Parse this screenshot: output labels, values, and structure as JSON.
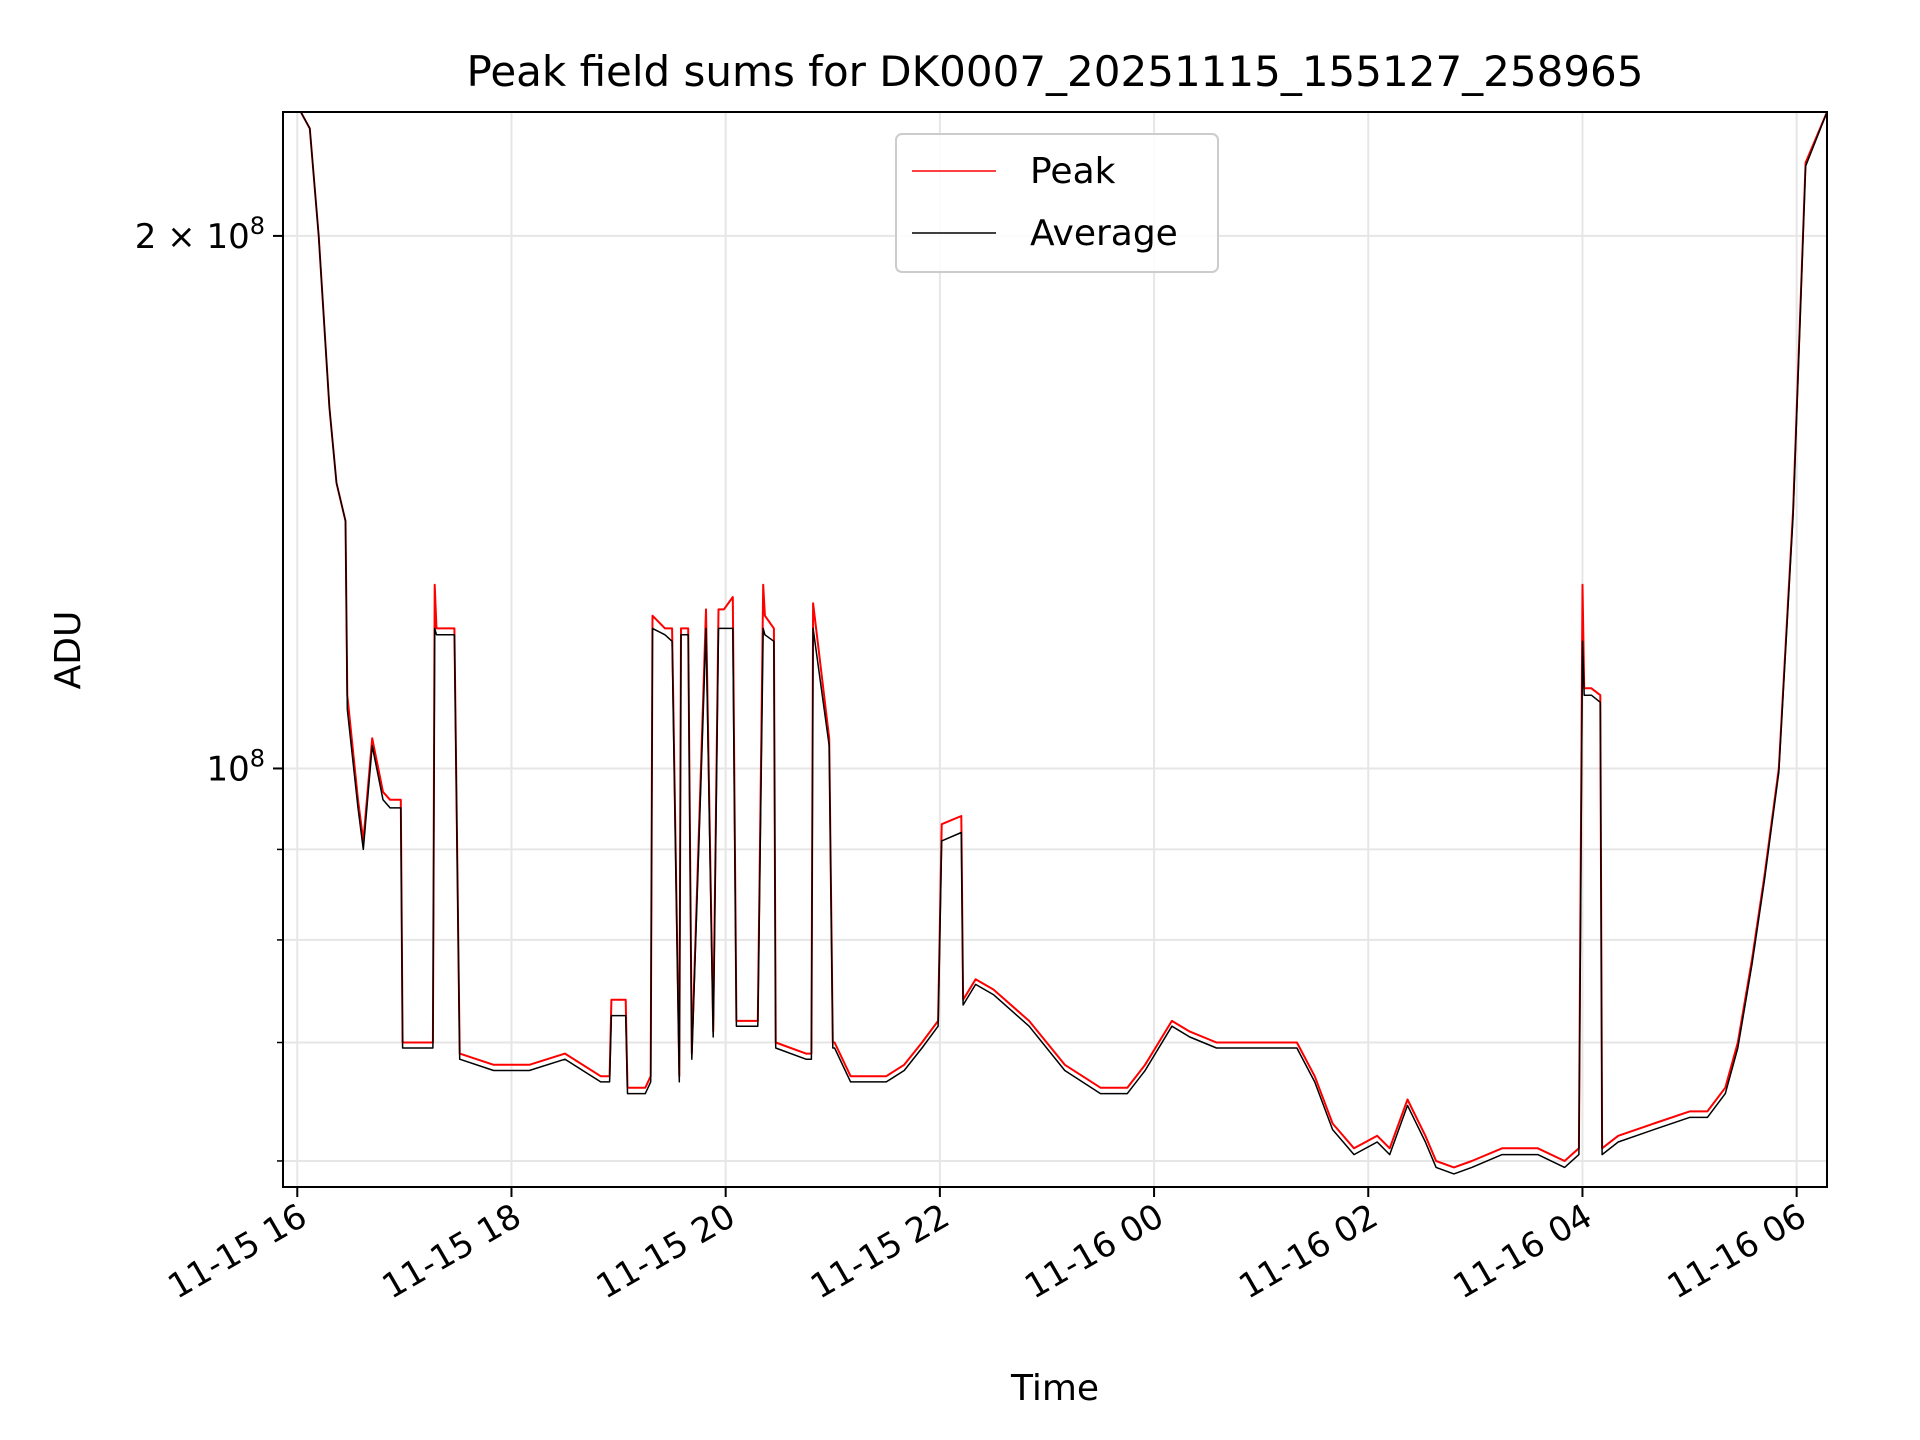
{
  "chart_data": {
    "type": "line",
    "title": "Peak field sums for DK0007_20251115_155127_258965",
    "xlabel": "Time",
    "ylabel": "ADU",
    "yscale": "log",
    "ylim": [
      58000000,
      235000000
    ],
    "xlim": [
      "11-15 15:52",
      "11-16 06:17"
    ],
    "grid": true,
    "legend": "upper-center",
    "x_ticks": [
      "11-15 16",
      "11-15 18",
      "11-15 20",
      "11-15 22",
      "11-16 00",
      "11-16 02",
      "11-16 04",
      "11-16 06"
    ],
    "y_ticks": [
      {
        "value": 100000000,
        "base": "10",
        "exp": "8",
        "mant": ""
      },
      {
        "value": 200000000,
        "base": "10",
        "exp": "8",
        "mant": "2 × "
      }
    ],
    "series": [
      {
        "name": "Peak",
        "color": "#ff0000",
        "x": [
          "11-15 15:52",
          "11-15 16:02",
          "11-15 16:07",
          "11-15 16:12",
          "11-15 16:18",
          "11-15 16:22",
          "11-15 16:27",
          "11-15 16:28",
          "11-15 16:34",
          "11-15 16:37",
          "11-15 16:42",
          "11-15 16:48",
          "11-15 16:52",
          "11-15 16:58",
          "11-15 16:59",
          "11-15 17:10",
          "11-15 17:16",
          "11-15 17:17",
          "11-15 17:18",
          "11-15 17:25",
          "11-15 17:28",
          "11-15 17:31",
          "11-15 17:50",
          "11-15 18:10",
          "11-15 18:30",
          "11-15 18:50",
          "11-15 18:55",
          "11-15 18:56",
          "11-15 19:04",
          "11-15 19:05",
          "11-15 19:15",
          "11-15 19:18",
          "11-15 19:19",
          "11-15 19:26",
          "11-15 19:30",
          "11-15 19:34",
          "11-15 19:35",
          "11-15 19:39",
          "11-15 19:41",
          "11-15 19:49",
          "11-15 19:53",
          "11-15 19:56",
          "11-15 19:59",
          "11-15 20:04",
          "11-15 20:06",
          "11-15 20:07",
          "11-15 20:18",
          "11-15 20:21",
          "11-15 20:22",
          "11-15 20:27",
          "11-15 20:28",
          "11-15 20:45",
          "11-15 20:48",
          "11-15 20:49",
          "11-15 20:58",
          "11-15 21:00",
          "11-15 21:01",
          "11-15 21:10",
          "11-15 21:20",
          "11-15 21:30",
          "11-15 21:40",
          "11-15 21:50",
          "11-15 21:59",
          "11-15 22:01",
          "11-15 22:12",
          "11-15 22:13",
          "11-15 22:20",
          "11-15 22:30",
          "11-15 22:50",
          "11-15 23:10",
          "11-15 23:30",
          "11-15 23:45",
          "11-15 23:55",
          "11-16 00:10",
          "11-16 00:20",
          "11-16 00:35",
          "11-16 00:50",
          "11-16 01:05",
          "11-16 01:20",
          "11-16 01:30",
          "11-16 01:40",
          "11-16 01:52",
          "11-16 02:05",
          "11-16 02:12",
          "11-16 02:22",
          "11-16 02:32",
          "11-16 02:38",
          "11-16 02:48",
          "11-16 02:58",
          "11-16 03:15",
          "11-16 03:35",
          "11-16 03:50",
          "11-16 03:58",
          "11-16 04:00",
          "11-16 04:01",
          "11-16 04:05",
          "11-16 04:10",
          "11-16 04:11",
          "11-16 04:20",
          "11-16 04:40",
          "11-16 05:00",
          "11-16 05:10",
          "11-16 05:20",
          "11-16 05:27",
          "11-16 05:35",
          "11-16 05:42",
          "11-16 05:50",
          "11-16 05:58",
          "11-16 06:05",
          "11-16 06:17"
        ],
        "y": [
          235000000,
          235000000,
          230000000,
          200000000,
          160000000,
          145000000,
          138000000,
          110000000,
          96000000,
          91000000,
          104000000,
          97000000,
          96000000,
          96000000,
          70000000,
          70000000,
          70000000,
          127000000,
          120000000,
          120000000,
          120000000,
          69000000,
          68000000,
          68000000,
          69000000,
          67000000,
          67000000,
          74000000,
          74000000,
          66000000,
          66000000,
          67000000,
          122000000,
          120000000,
          120000000,
          67000000,
          120000000,
          120000000,
          69000000,
          123000000,
          71000000,
          123000000,
          123000000,
          125000000,
          72000000,
          72000000,
          72000000,
          127000000,
          122000000,
          120000000,
          70000000,
          69000000,
          69000000,
          124000000,
          104000000,
          70000000,
          70000000,
          67000000,
          67000000,
          67000000,
          68000000,
          70000000,
          72000000,
          93000000,
          94000000,
          74000000,
          76000000,
          75000000,
          72000000,
          68000000,
          66000000,
          66000000,
          68000000,
          72000000,
          71000000,
          70000000,
          70000000,
          70000000,
          70000000,
          67000000,
          63000000,
          61000000,
          62000000,
          61000000,
          65000000,
          62000000,
          60000000,
          59500000,
          60000000,
          61000000,
          61000000,
          60000000,
          61000000,
          127000000,
          111000000,
          111000000,
          110000000,
          61000000,
          62000000,
          63000000,
          64000000,
          64000000,
          66000000,
          70000000,
          78000000,
          87000000,
          100000000,
          140000000,
          220000000,
          235000000
        ]
      },
      {
        "name": "Average",
        "color": "#000000",
        "x": [
          "11-15 15:52",
          "11-15 16:02",
          "11-15 16:07",
          "11-15 16:12",
          "11-15 16:18",
          "11-15 16:22",
          "11-15 16:27",
          "11-15 16:28",
          "11-15 16:34",
          "11-15 16:37",
          "11-15 16:42",
          "11-15 16:48",
          "11-15 16:52",
          "11-15 16:58",
          "11-15 16:59",
          "11-15 17:10",
          "11-15 17:16",
          "11-15 17:17",
          "11-15 17:18",
          "11-15 17:25",
          "11-15 17:28",
          "11-15 17:31",
          "11-15 17:50",
          "11-15 18:10",
          "11-15 18:30",
          "11-15 18:50",
          "11-15 18:55",
          "11-15 18:56",
          "11-15 19:04",
          "11-15 19:05",
          "11-15 19:15",
          "11-15 19:18",
          "11-15 19:19",
          "11-15 19:26",
          "11-15 19:30",
          "11-15 19:34",
          "11-15 19:35",
          "11-15 19:39",
          "11-15 19:41",
          "11-15 19:49",
          "11-15 19:53",
          "11-15 19:56",
          "11-15 19:59",
          "11-15 20:04",
          "11-15 20:06",
          "11-15 20:07",
          "11-15 20:18",
          "11-15 20:21",
          "11-15 20:22",
          "11-15 20:27",
          "11-15 20:28",
          "11-15 20:45",
          "11-15 20:48",
          "11-15 20:49",
          "11-15 20:58",
          "11-15 21:00",
          "11-15 21:01",
          "11-15 21:10",
          "11-15 21:20",
          "11-15 21:30",
          "11-15 21:40",
          "11-15 21:50",
          "11-15 21:59",
          "11-15 22:01",
          "11-15 22:12",
          "11-15 22:13",
          "11-15 22:20",
          "11-15 22:30",
          "11-15 22:50",
          "11-15 23:10",
          "11-15 23:30",
          "11-15 23:45",
          "11-15 23:55",
          "11-16 00:10",
          "11-16 00:20",
          "11-16 00:35",
          "11-16 00:50",
          "11-16 01:05",
          "11-16 01:20",
          "11-16 01:30",
          "11-16 01:40",
          "11-16 01:52",
          "11-16 02:05",
          "11-16 02:12",
          "11-16 02:22",
          "11-16 02:32",
          "11-16 02:38",
          "11-16 02:48",
          "11-16 02:58",
          "11-16 03:15",
          "11-16 03:35",
          "11-16 03:50",
          "11-16 03:58",
          "11-16 04:00",
          "11-16 04:01",
          "11-16 04:05",
          "11-16 04:10",
          "11-16 04:11",
          "11-16 04:20",
          "11-16 04:40",
          "11-16 05:00",
          "11-16 05:10",
          "11-16 05:20",
          "11-16 05:27",
          "11-16 05:35",
          "11-16 05:42",
          "11-16 05:50",
          "11-16 05:58",
          "11-16 06:05",
          "11-16 06:17"
        ],
        "y": [
          235000000,
          235000000,
          230000000,
          200000000,
          160000000,
          145000000,
          138000000,
          108000000,
          95000000,
          90000000,
          103000000,
          96000000,
          95000000,
          95000000,
          69500000,
          69500000,
          69500000,
          120000000,
          119000000,
          119000000,
          119000000,
          68500000,
          67500000,
          67500000,
          68500000,
          66500000,
          66500000,
          72500000,
          72500000,
          65500000,
          65500000,
          66500000,
          120000000,
          119000000,
          118000000,
          66500000,
          119000000,
          119000000,
          68500000,
          120000000,
          70500000,
          120000000,
          120000000,
          120000000,
          71500000,
          71500000,
          71500000,
          120000000,
          119000000,
          118000000,
          69500000,
          68500000,
          68500000,
          120000000,
          103000000,
          69500000,
          69500000,
          66500000,
          66500000,
          66500000,
          67500000,
          69500000,
          71500000,
          91000000,
          92000000,
          73500000,
          75500000,
          74500000,
          71500000,
          67500000,
          65500000,
          65500000,
          67500000,
          71500000,
          70500000,
          69500000,
          69500000,
          69500000,
          69500000,
          66500000,
          62500000,
          60500000,
          61500000,
          60500000,
          64500000,
          61500000,
          59500000,
          59000000,
          59500000,
          60500000,
          60500000,
          59500000,
          60500000,
          118000000,
          110000000,
          110000000,
          109000000,
          60500000,
          61500000,
          62500000,
          63500000,
          63500000,
          65500000,
          69500000,
          77500000,
          86500000,
          99500000,
          139000000,
          219000000,
          235000000
        ]
      }
    ]
  }
}
